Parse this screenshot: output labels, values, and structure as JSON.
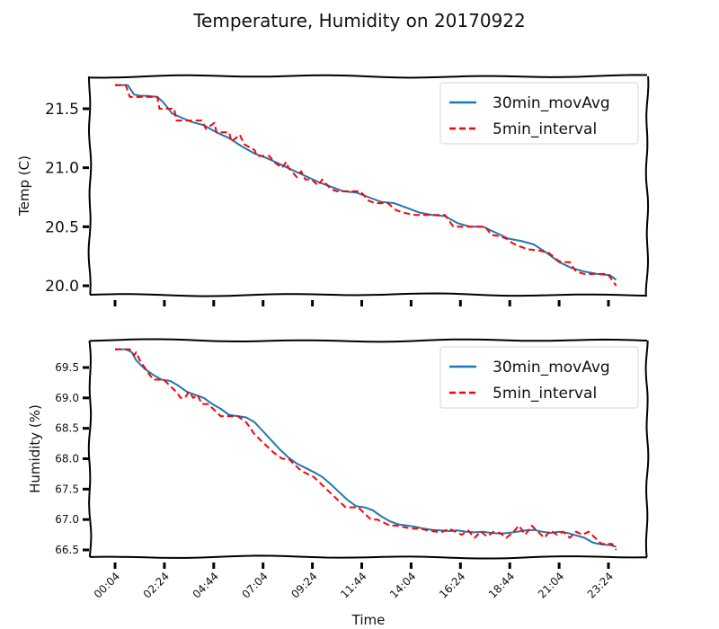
{
  "chart_data": {
    "title": "Temperature, Humidity on 20170922",
    "xlabel": "Time",
    "x_ticks": [
      "00:04",
      "02:24",
      "04:44",
      "07:04",
      "09:24",
      "11:44",
      "14:04",
      "16:24",
      "18:44",
      "21:04",
      "23:24"
    ],
    "panels": [
      {
        "type": "line",
        "ylabel": "Temp (C)",
        "ylim": [
          19.97,
          21.75
        ],
        "yticks": [
          "20.0",
          "20.5",
          "21.0",
          "21.5"
        ],
        "series": [
          {
            "name": "30min_movAvg",
            "color": "#1f77b4",
            "style": "solid",
            "x": [
              0,
              0.3,
              0.6,
              0.9,
              1.2,
              1.5,
              2.0,
              2.3,
              2.7,
              3.2,
              3.6,
              4.2,
              4.8,
              5.4,
              6.0,
              6.6,
              7.2,
              7.8,
              8.4,
              9.0,
              9.6,
              10.2,
              10.8,
              11.4,
              12.0,
              12.6,
              13.2,
              13.8,
              14.4,
              15.0,
              15.6,
              16.2,
              16.8,
              17.4,
              18.0,
              18.6,
              19.2,
              19.8,
              20.4,
              21.0,
              21.6,
              22.2,
              22.8,
              23.4,
              23.7
            ],
            "y": [
              21.7,
              21.7,
              21.7,
              21.62,
              21.61,
              21.61,
              21.6,
              21.55,
              21.46,
              21.42,
              21.39,
              21.36,
              21.3,
              21.25,
              21.18,
              21.12,
              21.08,
              21.03,
              20.98,
              20.93,
              20.88,
              20.84,
              20.8,
              20.79,
              20.75,
              20.71,
              20.7,
              20.66,
              20.62,
              20.6,
              20.59,
              20.53,
              20.5,
              20.5,
              20.45,
              20.4,
              20.38,
              20.35,
              20.28,
              20.2,
              20.15,
              20.12,
              20.1,
              20.09,
              20.05
            ]
          },
          {
            "name": "5min_interval",
            "color": "#ff0000",
            "style": "dashed",
            "x": [
              0,
              0.5,
              0.7,
              1.5,
              2.0,
              2.1,
              2.8,
              2.9,
              3.6,
              4.1,
              4.3,
              4.7,
              4.8,
              5.4,
              5.5,
              5.9,
              6.1,
              6.3,
              6.6,
              6.7,
              7.3,
              7.5,
              7.9,
              8.1,
              8.2,
              8.6,
              8.8,
              9.0,
              9.3,
              9.6,
              9.8,
              10.2,
              10.5,
              10.8,
              11.6,
              12.0,
              12.3,
              12.6,
              12.9,
              13.3,
              13.6,
              14.2,
              14.4,
              14.8,
              15.0,
              15.6,
              16.0,
              16.5,
              17.0,
              17.5,
              17.8,
              18.2,
              18.5,
              18.8,
              19.2,
              19.5,
              20.0,
              20.5,
              20.9,
              21.1,
              21.5,
              21.8,
              22.2,
              22.6,
              23.0,
              23.3,
              23.5,
              23.7
            ],
            "y": [
              21.7,
              21.7,
              21.6,
              21.6,
              21.6,
              21.5,
              21.5,
              21.4,
              21.4,
              21.4,
              21.33,
              21.38,
              21.3,
              21.3,
              21.22,
              21.28,
              21.2,
              21.18,
              21.15,
              21.1,
              21.1,
              21.05,
              21.0,
              21.05,
              21.0,
              20.92,
              20.97,
              20.9,
              20.9,
              20.85,
              20.9,
              20.82,
              20.8,
              20.8,
              20.8,
              20.72,
              20.7,
              20.7,
              20.7,
              20.64,
              20.62,
              20.6,
              20.6,
              20.6,
              20.6,
              20.6,
              20.5,
              20.5,
              20.5,
              20.5,
              20.43,
              20.42,
              20.4,
              20.36,
              20.33,
              20.31,
              20.3,
              20.28,
              20.22,
              20.2,
              20.2,
              20.12,
              20.1,
              20.1,
              20.1,
              20.1,
              20.05,
              20.0
            ]
          }
        ]
      },
      {
        "type": "line",
        "ylabel": "Humidity (%)",
        "ylim": [
          66.4,
          69.85
        ],
        "yticks": [
          "66.5",
          "67.0",
          "67.5",
          "68.0",
          "68.5",
          "69.0",
          "69.5"
        ],
        "series": [
          {
            "name": "30min_movAvg",
            "color": "#1f77b4",
            "style": "solid",
            "x": [
              0,
              0.5,
              0.8,
              1.0,
              1.4,
              1.8,
              2.2,
              2.6,
              3.0,
              3.4,
              3.8,
              4.2,
              4.6,
              5.0,
              5.4,
              5.8,
              6.2,
              6.6,
              7.0,
              7.4,
              7.8,
              8.2,
              8.6,
              9.0,
              9.4,
              9.8,
              10.2,
              10.6,
              11.0,
              11.4,
              11.8,
              12.2,
              12.6,
              13.0,
              13.4,
              13.8,
              14.2,
              14.6,
              15.0,
              15.4,
              15.8,
              16.2,
              16.6,
              17.0,
              17.4,
              17.8,
              18.2,
              18.6,
              19.0,
              19.4,
              19.8,
              20.2,
              20.6,
              21.0,
              21.4,
              21.8,
              22.2,
              22.6,
              23.0,
              23.4,
              23.7
            ],
            "y": [
              69.8,
              69.8,
              69.75,
              69.62,
              69.48,
              69.38,
              69.3,
              69.28,
              69.2,
              69.1,
              69.05,
              69.0,
              68.9,
              68.82,
              68.72,
              68.7,
              68.68,
              68.6,
              68.45,
              68.3,
              68.15,
              68.02,
              67.92,
              67.85,
              67.78,
              67.7,
              67.58,
              67.45,
              67.32,
              67.22,
              67.2,
              67.15,
              67.05,
              66.97,
              66.92,
              66.9,
              66.88,
              66.85,
              66.83,
              66.82,
              66.81,
              66.82,
              66.8,
              66.79,
              66.8,
              66.78,
              66.77,
              66.78,
              66.8,
              66.82,
              66.83,
              66.8,
              66.78,
              66.8,
              66.78,
              66.74,
              66.7,
              66.62,
              66.59,
              66.58,
              66.55
            ]
          },
          {
            "name": "5min_interval",
            "color": "#ff0000",
            "style": "dashed",
            "x": [
              0,
              0.4,
              0.7,
              0.9,
              1.0,
              1.2,
              1.4,
              1.6,
              1.8,
              2.0,
              2.3,
              2.6,
              2.9,
              3.1,
              3.3,
              3.5,
              3.7,
              3.9,
              4.1,
              4.4,
              4.7,
              5.0,
              5.4,
              5.8,
              6.2,
              6.4,
              6.6,
              6.9,
              7.2,
              7.5,
              7.9,
              8.2,
              8.5,
              8.8,
              9.1,
              9.4,
              9.7,
              10.0,
              10.3,
              10.6,
              10.9,
              11.2,
              11.5,
              11.8,
              12.1,
              12.4,
              12.7,
              13.0,
              13.3,
              13.6,
              14.0,
              14.4,
              14.8,
              15.2,
              15.5,
              15.8,
              16.1,
              16.4,
              16.7,
              17.0,
              17.3,
              17.6,
              17.9,
              18.2,
              18.5,
              18.8,
              19.1,
              19.4,
              19.7,
              20.0,
              20.3,
              20.6,
              20.9,
              21.2,
              21.5,
              21.8,
              22.1,
              22.4,
              22.7,
              23.0,
              23.3,
              23.5,
              23.7
            ],
            "y": [
              69.8,
              69.8,
              69.8,
              69.7,
              69.75,
              69.6,
              69.5,
              69.4,
              69.3,
              69.3,
              69.3,
              69.2,
              69.1,
              69.0,
              69.0,
              69.1,
              69.0,
              69.05,
              68.9,
              68.9,
              68.8,
              68.7,
              68.7,
              68.7,
              68.6,
              68.5,
              68.4,
              68.3,
              68.2,
              68.1,
              68.0,
              68.0,
              67.9,
              67.8,
              67.75,
              67.7,
              67.6,
              67.5,
              67.4,
              67.3,
              67.2,
              67.2,
              67.2,
              67.1,
              67.0,
              67.0,
              66.95,
              66.9,
              66.9,
              66.88,
              66.85,
              66.85,
              66.82,
              66.8,
              66.8,
              66.85,
              66.8,
              66.75,
              66.82,
              66.7,
              66.8,
              66.72,
              66.8,
              66.78,
              66.7,
              66.78,
              66.9,
              66.75,
              66.9,
              66.8,
              66.7,
              66.82,
              66.75,
              66.8,
              66.7,
              66.8,
              66.75,
              66.8,
              66.7,
              66.6,
              66.6,
              66.6,
              66.5
            ]
          }
        ]
      }
    ]
  }
}
